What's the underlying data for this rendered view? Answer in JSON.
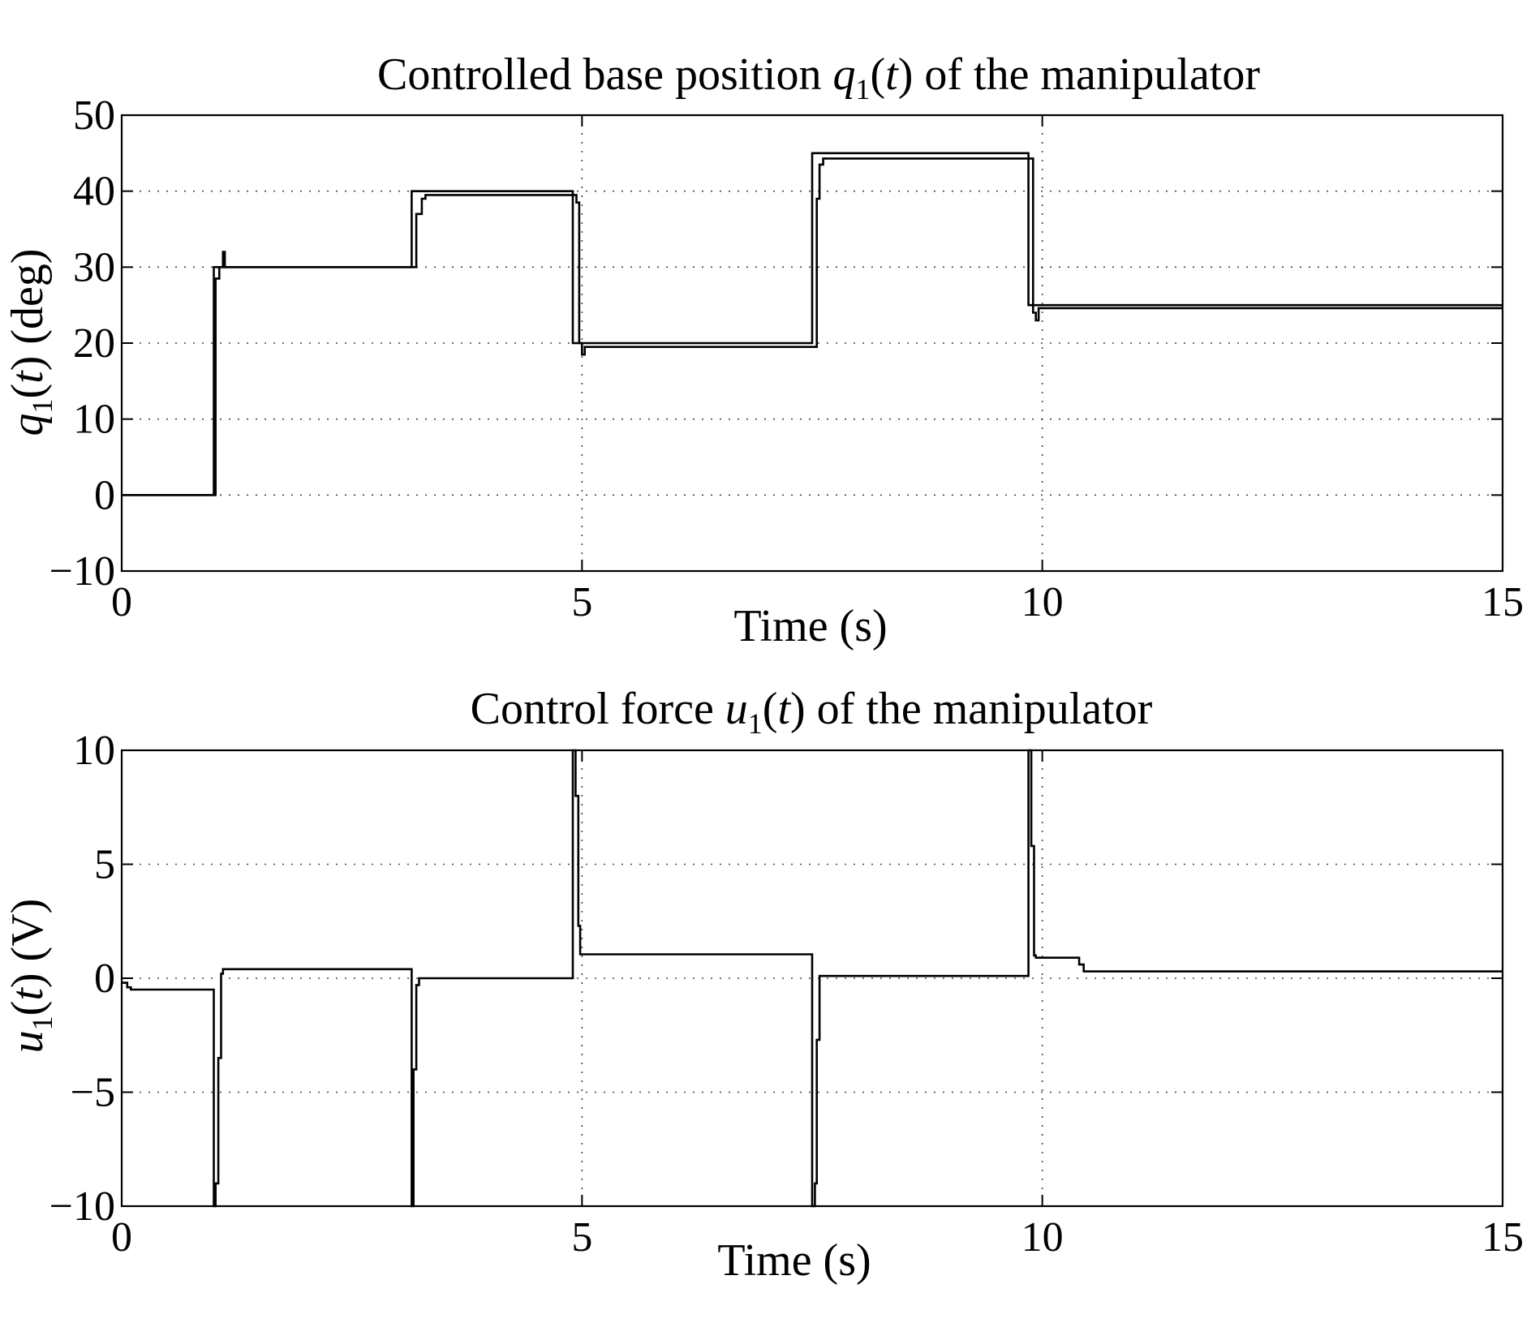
{
  "chart_data": [
    {
      "type": "line",
      "title": {
        "prefix": "Controlled base position ",
        "var": "q",
        "sub": "1",
        "open": "(",
        "arg": "t",
        "close": ")",
        "suffix": " of the manipulator"
      },
      "xlabel": "Time (s)",
      "ylabel": {
        "var": "q",
        "sub": "1",
        "open": "(",
        "arg": "t",
        "close": ")",
        "unit": " (deg)"
      },
      "xlim": [
        0,
        15
      ],
      "ylim": [
        -10,
        50
      ],
      "xticks": [
        0,
        5,
        10,
        15
      ],
      "xtick_labels": [
        "0",
        "5",
        "10",
        "15"
      ],
      "yticks": [
        -10,
        0,
        10,
        20,
        30,
        40,
        50
      ],
      "ytick_labels": [
        "−10",
        "0",
        "10",
        "20",
        "30",
        "40",
        "50"
      ],
      "grid": true,
      "series": [
        {
          "x": [
            0,
            1.0,
            1.0,
            3.15,
            3.15,
            4.9,
            4.9,
            7.5,
            7.5,
            9.85,
            9.85,
            15
          ],
          "y": [
            0,
            0,
            30,
            30,
            40,
            40,
            20,
            20,
            45,
            45,
            25,
            25
          ]
        },
        {
          "x": [
            0,
            1.02,
            1.02,
            1.06,
            1.06,
            1.1,
            1.1,
            1.12,
            1.12,
            3.2,
            3.2,
            3.26,
            3.26,
            3.3,
            3.3,
            4.94,
            4.94,
            4.97,
            4.97,
            5.0,
            5.0,
            5.03,
            5.03,
            7.55,
            7.55,
            7.58,
            7.58,
            7.62,
            7.62,
            9.9,
            9.9,
            9.93,
            9.93,
            9.96,
            9.96,
            15
          ],
          "y": [
            0,
            0,
            28.5,
            28.5,
            30,
            30,
            32,
            32,
            30,
            30,
            37,
            37,
            39,
            39,
            39.5,
            39.5,
            38.5,
            38.5,
            20,
            20,
            18.5,
            18.5,
            19.5,
            19.5,
            39,
            39,
            43.5,
            43.5,
            44.3,
            44.3,
            24,
            24,
            23,
            23,
            24.6,
            24.6
          ]
        }
      ]
    },
    {
      "type": "line",
      "title": {
        "prefix": "Control force ",
        "var": "u",
        "sub": "1",
        "open": "(",
        "arg": "t",
        "close": ")",
        "suffix": " of the manipulator"
      },
      "xlabel": "Time (s)",
      "ylabel": {
        "var": "u",
        "sub": "1",
        "open": "(",
        "arg": "t",
        "close": ")",
        "unit": " (V)"
      },
      "xlim": [
        0,
        15
      ],
      "ylim": [
        -10,
        10
      ],
      "xticks": [
        0,
        5,
        10,
        15
      ],
      "xtick_labels": [
        "0",
        "5",
        "10",
        "15"
      ],
      "yticks": [
        -10,
        -5,
        0,
        5,
        10
      ],
      "ytick_labels": [
        "−10",
        "−5",
        "0",
        "5",
        "10"
      ],
      "grid": true,
      "series": [
        {
          "x": [
            0,
            0.06,
            0.06,
            0.1,
            0.1,
            1.0,
            1.0,
            1.02,
            1.02,
            1.05,
            1.05,
            1.08,
            1.08,
            1.1,
            1.1,
            3.15,
            3.15,
            3.17,
            3.17,
            3.2,
            3.2,
            3.23,
            3.23,
            4.9,
            4.9,
            4.93,
            4.93,
            4.96,
            4.96,
            4.98,
            4.98,
            7.5,
            7.5,
            7.53,
            7.53,
            7.55,
            7.55,
            7.58,
            7.58,
            9.85,
            9.85,
            9.88,
            9.88,
            9.91,
            9.91,
            9.93,
            9.93,
            10.4,
            10.4,
            10.45,
            10.45,
            15
          ],
          "y": [
            -0.2,
            -0.2,
            -0.4,
            -0.4,
            -0.5,
            -0.5,
            -10,
            -10,
            -9,
            -9,
            -3.5,
            -3.5,
            0.2,
            0.2,
            0.4,
            0.4,
            -10,
            -10,
            -4,
            -4,
            -0.3,
            -0.3,
            0,
            0,
            10,
            10,
            8,
            8,
            2.3,
            2.3,
            1.05,
            1.05,
            -10,
            -10,
            -9,
            -9,
            -2.7,
            -2.7,
            0.1,
            0.1,
            10,
            10,
            5.8,
            5.8,
            1.0,
            1.0,
            0.9,
            0.9,
            0.6,
            0.6,
            0.3,
            0.3
          ]
        }
      ]
    }
  ]
}
